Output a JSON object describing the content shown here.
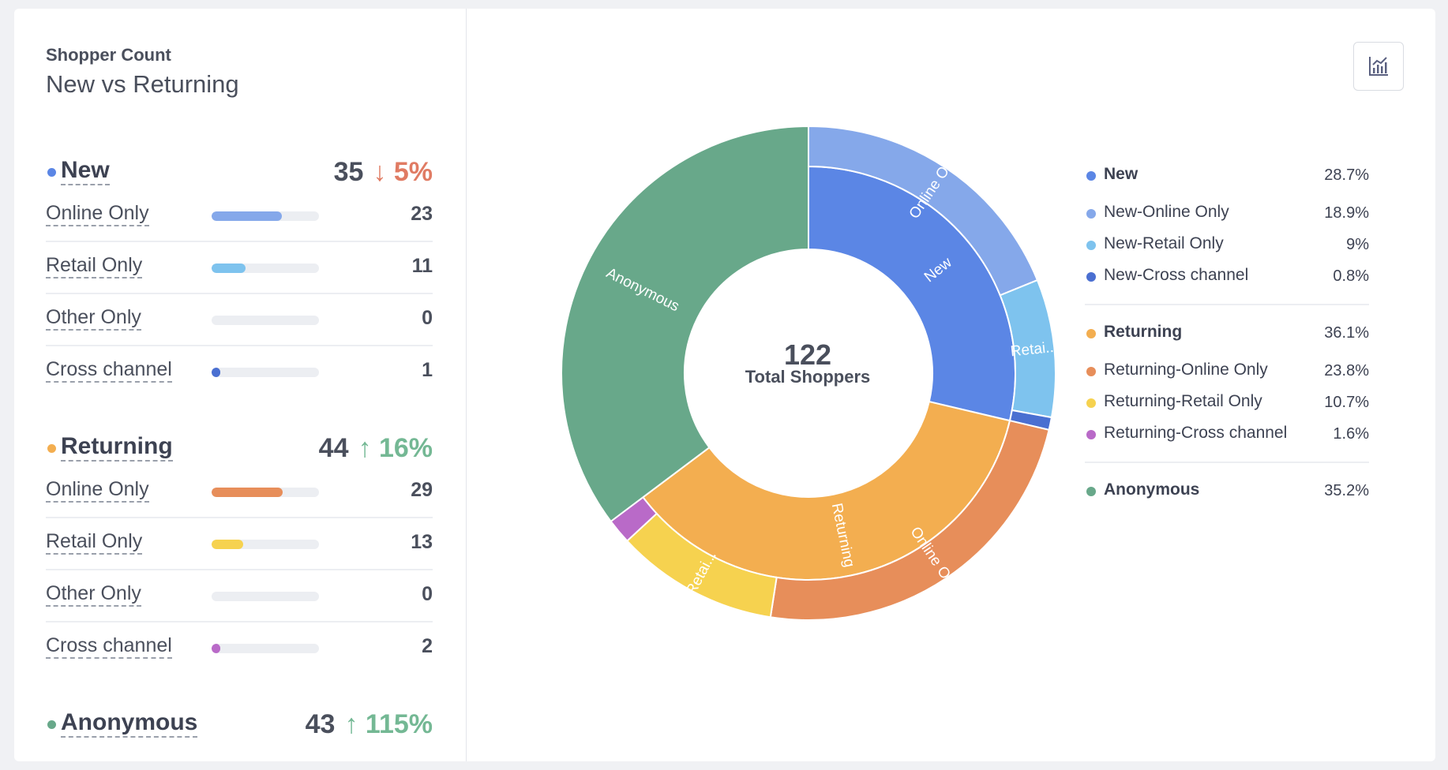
{
  "header": {
    "title_small": "Shopper Count",
    "title_big": "New vs Returning"
  },
  "groups": [
    {
      "name": "New",
      "color": "#5b86e5",
      "count": "35",
      "change": "↓ 5%",
      "direction": "down",
      "rows": [
        {
          "label": "Online Only",
          "value": "23",
          "color": "#85a8ea"
        },
        {
          "label": "Retail Only",
          "value": "11",
          "color": "#7ec3ee"
        },
        {
          "label": "Other Only",
          "value": "0",
          "color": "#cccccc"
        },
        {
          "label": "Cross channel",
          "value": "1",
          "color": "#4a6fd1"
        }
      ]
    },
    {
      "name": "Returning",
      "color": "#f3ae50",
      "count": "44",
      "change": "↑ 16%",
      "direction": "up",
      "rows": [
        {
          "label": "Online Only",
          "value": "29",
          "color": "#e78e5a"
        },
        {
          "label": "Retail Only",
          "value": "13",
          "color": "#f6d24f"
        },
        {
          "label": "Other Only",
          "value": "0",
          "color": "#cccccc"
        },
        {
          "label": "Cross channel",
          "value": "2",
          "color": "#b96ac8"
        }
      ]
    },
    {
      "name": "Anonymous",
      "color": "#68a88a",
      "count": "43",
      "change": "↑ 115%",
      "direction": "up",
      "rows": []
    }
  ],
  "toolbar": {
    "icon": "chart-icon"
  },
  "center": {
    "number": "122",
    "label": "Total Shoppers"
  },
  "chart_data": {
    "type": "pie",
    "variant": "sunburst",
    "total": 122,
    "inner": [
      {
        "name": "New",
        "value": 35,
        "color": "#5b86e5",
        "label": "New"
      },
      {
        "name": "Returning",
        "value": 44,
        "color": "#f3ae50",
        "label": "Returning"
      },
      {
        "name": "Anonymous",
        "value": 43,
        "color": "#68a88a",
        "label": "Anonymous"
      }
    ],
    "outer": [
      {
        "name": "New-Online Only",
        "value": 23,
        "color": "#85a8ea",
        "label": "Online Only"
      },
      {
        "name": "New-Retail Only",
        "value": 11,
        "color": "#7ec3ee",
        "label": "Retai..."
      },
      {
        "name": "New-Cross channel",
        "value": 1,
        "color": "#4a6fd1",
        "label": ""
      },
      {
        "name": "Returning-Online Only",
        "value": 29,
        "color": "#e78e5a",
        "label": "Online Only"
      },
      {
        "name": "Returning-Retail Only",
        "value": 13,
        "color": "#f6d24f",
        "label": "Retai..."
      },
      {
        "name": "Returning-Cross channel",
        "value": 2,
        "color": "#b96ac8",
        "label": ""
      }
    ]
  },
  "legend": {
    "sections": [
      {
        "items": [
          {
            "name": "New",
            "pct": "28.7%",
            "color": "#5b86e5",
            "bold": true
          },
          {
            "name": "New-Online Only",
            "pct": "18.9%",
            "color": "#85a8ea",
            "bold": false
          },
          {
            "name": "New-Retail Only",
            "pct": "9%",
            "color": "#7ec3ee",
            "bold": false
          },
          {
            "name": "New-Cross channel",
            "pct": "0.8%",
            "color": "#4a6fd1",
            "bold": false
          }
        ]
      },
      {
        "items": [
          {
            "name": "Returning",
            "pct": "36.1%",
            "color": "#f3ae50",
            "bold": true
          },
          {
            "name": "Returning-Online Only",
            "pct": "23.8%",
            "color": "#e78e5a",
            "bold": false
          },
          {
            "name": "Returning-Retail Only",
            "pct": "10.7%",
            "color": "#f6d24f",
            "bold": false
          },
          {
            "name": "Returning-Cross channel",
            "pct": "1.6%",
            "color": "#b96ac8",
            "bold": false
          }
        ]
      },
      {
        "items": [
          {
            "name": "Anonymous",
            "pct": "35.2%",
            "color": "#68a88a",
            "bold": true
          }
        ]
      }
    ]
  }
}
